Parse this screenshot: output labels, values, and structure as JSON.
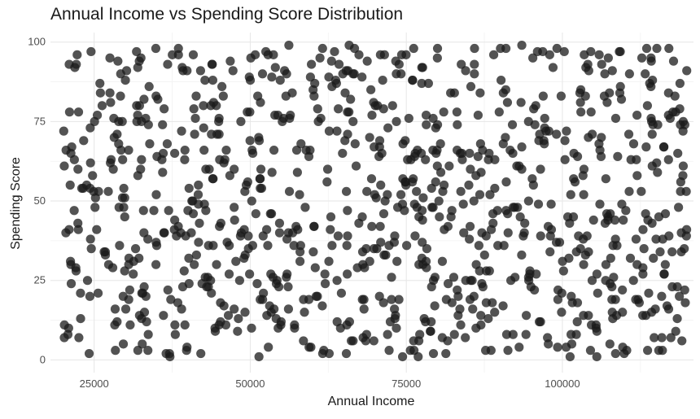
{
  "chart_data": {
    "type": "scatter",
    "title": "Annual Income vs Spending Score Distribution",
    "xlabel": "Annual Income",
    "ylabel": "Spending Score",
    "xlim": [
      18000,
      121000
    ],
    "ylim": [
      -4,
      103
    ],
    "x_ticks": [
      25000,
      50000,
      75000,
      100000
    ],
    "x_tick_labels": [
      "25000",
      "50000",
      "75000",
      "100000"
    ],
    "y_ticks": [
      0,
      25,
      50,
      75,
      100
    ],
    "y_tick_labels": [
      "0",
      "25",
      "50",
      "75",
      "100"
    ],
    "grid": true,
    "point_color": "#1a1a1a",
    "point_opacity": 0.75,
    "point_count": 1000,
    "x_range": [
      20000,
      120000
    ],
    "y_range": [
      1,
      99
    ],
    "points": [
      [
        21000,
        93
      ],
      [
        24500,
        97
      ],
      [
        30200,
        91
      ],
      [
        33800,
        86
      ],
      [
        38500,
        96
      ],
      [
        44000,
        88
      ],
      [
        46800,
        94
      ],
      [
        52500,
        97
      ],
      [
        55500,
        91
      ],
      [
        59800,
        93
      ],
      [
        63500,
        97
      ],
      [
        67900,
        89
      ],
      [
        71500,
        96
      ],
      [
        76000,
        88
      ],
      [
        80000,
        98
      ],
      [
        84500,
        91
      ],
      [
        89000,
        96
      ],
      [
        93500,
        99
      ],
      [
        98500,
        92
      ],
      [
        103500,
        96
      ],
      [
        108000,
        91
      ],
      [
        113500,
        98
      ],
      [
        117000,
        84
      ],
      [
        22500,
        78
      ],
      [
        26000,
        84
      ],
      [
        29500,
        75
      ],
      [
        31800,
        80
      ],
      [
        35200,
        82
      ],
      [
        39000,
        72
      ],
      [
        42500,
        80
      ],
      [
        48500,
        75
      ],
      [
        51200,
        83
      ],
      [
        56300,
        76
      ],
      [
        60800,
        79
      ],
      [
        65200,
        84
      ],
      [
        69500,
        77
      ],
      [
        72800,
        80
      ],
      [
        78200,
        74
      ],
      [
        82100,
        84
      ],
      [
        86500,
        77
      ],
      [
        91200,
        81
      ],
      [
        95600,
        74
      ],
      [
        99800,
        83
      ],
      [
        104600,
        78
      ],
      [
        109200,
        84
      ],
      [
        114300,
        75
      ],
      [
        118800,
        79
      ],
      [
        20500,
        66
      ],
      [
        23800,
        55
      ],
      [
        27600,
        62
      ],
      [
        32000,
        58
      ],
      [
        36700,
        68
      ],
      [
        40200,
        54
      ],
      [
        45100,
        63
      ],
      [
        49600,
        56
      ],
      [
        53800,
        66
      ],
      [
        57900,
        52
      ],
      [
        62400,
        60
      ],
      [
        66800,
        68
      ],
      [
        70900,
        55
      ],
      [
        75200,
        63
      ],
      [
        79700,
        56
      ],
      [
        83900,
        65
      ],
      [
        88400,
        52
      ],
      [
        92700,
        61
      ],
      [
        97100,
        68
      ],
      [
        101800,
        57
      ],
      [
        106200,
        64
      ],
      [
        110700,
        53
      ],
      [
        115100,
        62
      ],
      [
        119300,
        58
      ],
      [
        21800,
        47
      ],
      [
        25400,
        41
      ],
      [
        29900,
        45
      ],
      [
        33600,
        38
      ],
      [
        37900,
        44
      ],
      [
        41700,
        49
      ],
      [
        46300,
        37
      ],
      [
        50900,
        46
      ],
      [
        54700,
        40
      ],
      [
        58800,
        48
      ],
      [
        63100,
        36
      ],
      [
        67400,
        43
      ],
      [
        71600,
        50
      ],
      [
        76400,
        39
      ],
      [
        80300,
        45
      ],
      [
        85100,
        38
      ],
      [
        89600,
        47
      ],
      [
        93900,
        40
      ],
      [
        98200,
        49
      ],
      [
        102900,
        35
      ],
      [
        107300,
        44
      ],
      [
        111800,
        38
      ],
      [
        116500,
        46
      ],
      [
        119900,
        41
      ],
      [
        22100,
        28
      ],
      [
        26800,
        33
      ],
      [
        30700,
        22
      ],
      [
        34900,
        30
      ],
      [
        38400,
        18
      ],
      [
        43200,
        26
      ],
      [
        47700,
        31
      ],
      [
        51600,
        19
      ],
      [
        55900,
        27
      ],
      [
        60100,
        34
      ],
      [
        64600,
        21
      ],
      [
        68300,
        29
      ],
      [
        73100,
        16
      ],
      [
        77500,
        32
      ],
      [
        81700,
        24
      ],
      [
        86200,
        30
      ],
      [
        90500,
        17
      ],
      [
        94800,
        28
      ],
      [
        99300,
        22
      ],
      [
        103700,
        33
      ],
      [
        108500,
        19
      ],
      [
        112900,
        27
      ],
      [
        117600,
        23
      ],
      [
        20800,
        8
      ],
      [
        24200,
        2
      ],
      [
        28300,
        11
      ],
      [
        32700,
        5
      ],
      [
        36100,
        14
      ],
      [
        39800,
        3
      ],
      [
        44400,
        9
      ],
      [
        48100,
        13
      ],
      [
        52900,
        4
      ],
      [
        57100,
        10
      ],
      [
        61600,
        2
      ],
      [
        65900,
        12
      ],
      [
        69800,
        6
      ],
      [
        74400,
        1
      ],
      [
        78900,
        9
      ],
      [
        83300,
        14
      ],
      [
        87700,
        3
      ],
      [
        92100,
        8
      ],
      [
        96500,
        12
      ],
      [
        100600,
        4
      ],
      [
        105400,
        11
      ],
      [
        109900,
        2
      ],
      [
        114700,
        7
      ],
      [
        118400,
        13
      ]
    ]
  }
}
